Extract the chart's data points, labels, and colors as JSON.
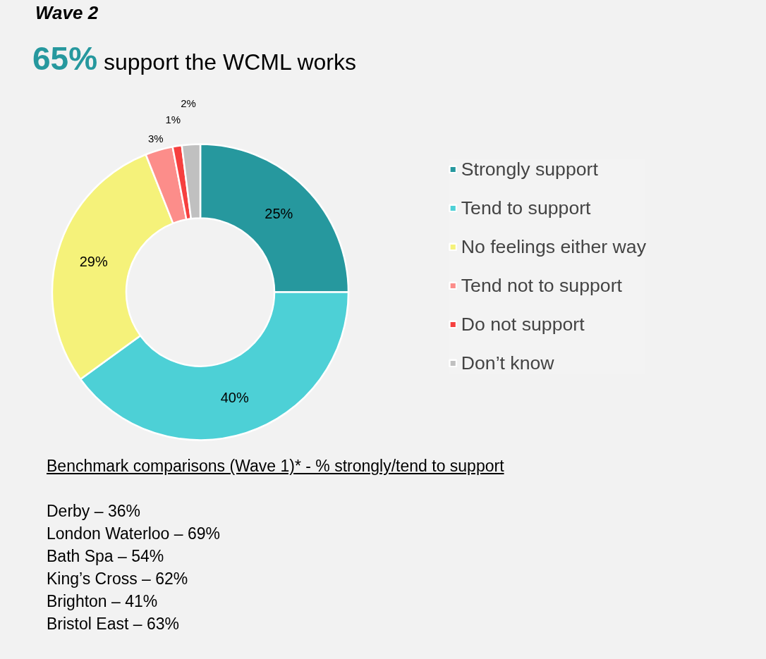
{
  "chart_data": {
    "type": "donut",
    "title": "Wave 2",
    "subtitle": "65% support the WCML works",
    "categories": [
      "Strongly support",
      "Tend to support",
      "No feelings either way",
      "Tend not to support",
      "Do not support",
      "Don’t know"
    ],
    "values": [
      25,
      40,
      29,
      3,
      1,
      2
    ],
    "colors": [
      "#26989e",
      "#4dd0d6",
      "#f5f27a",
      "#fc8d8a",
      "#f6403f",
      "#c0c0c0"
    ],
    "value_labels": [
      "25%",
      "40%",
      "29%",
      "3%",
      "1%",
      "2%"
    ],
    "legend": "right",
    "annotations": [
      "Benchmark comparisons (Wave 1)* - % strongly/tend to support",
      "Derby – 36%",
      "London Waterloo – 69%",
      "Bath Spa – 54%",
      "King’s Cross – 62%",
      "Brighton – 41%",
      "Bristol East – 63%"
    ]
  }
}
